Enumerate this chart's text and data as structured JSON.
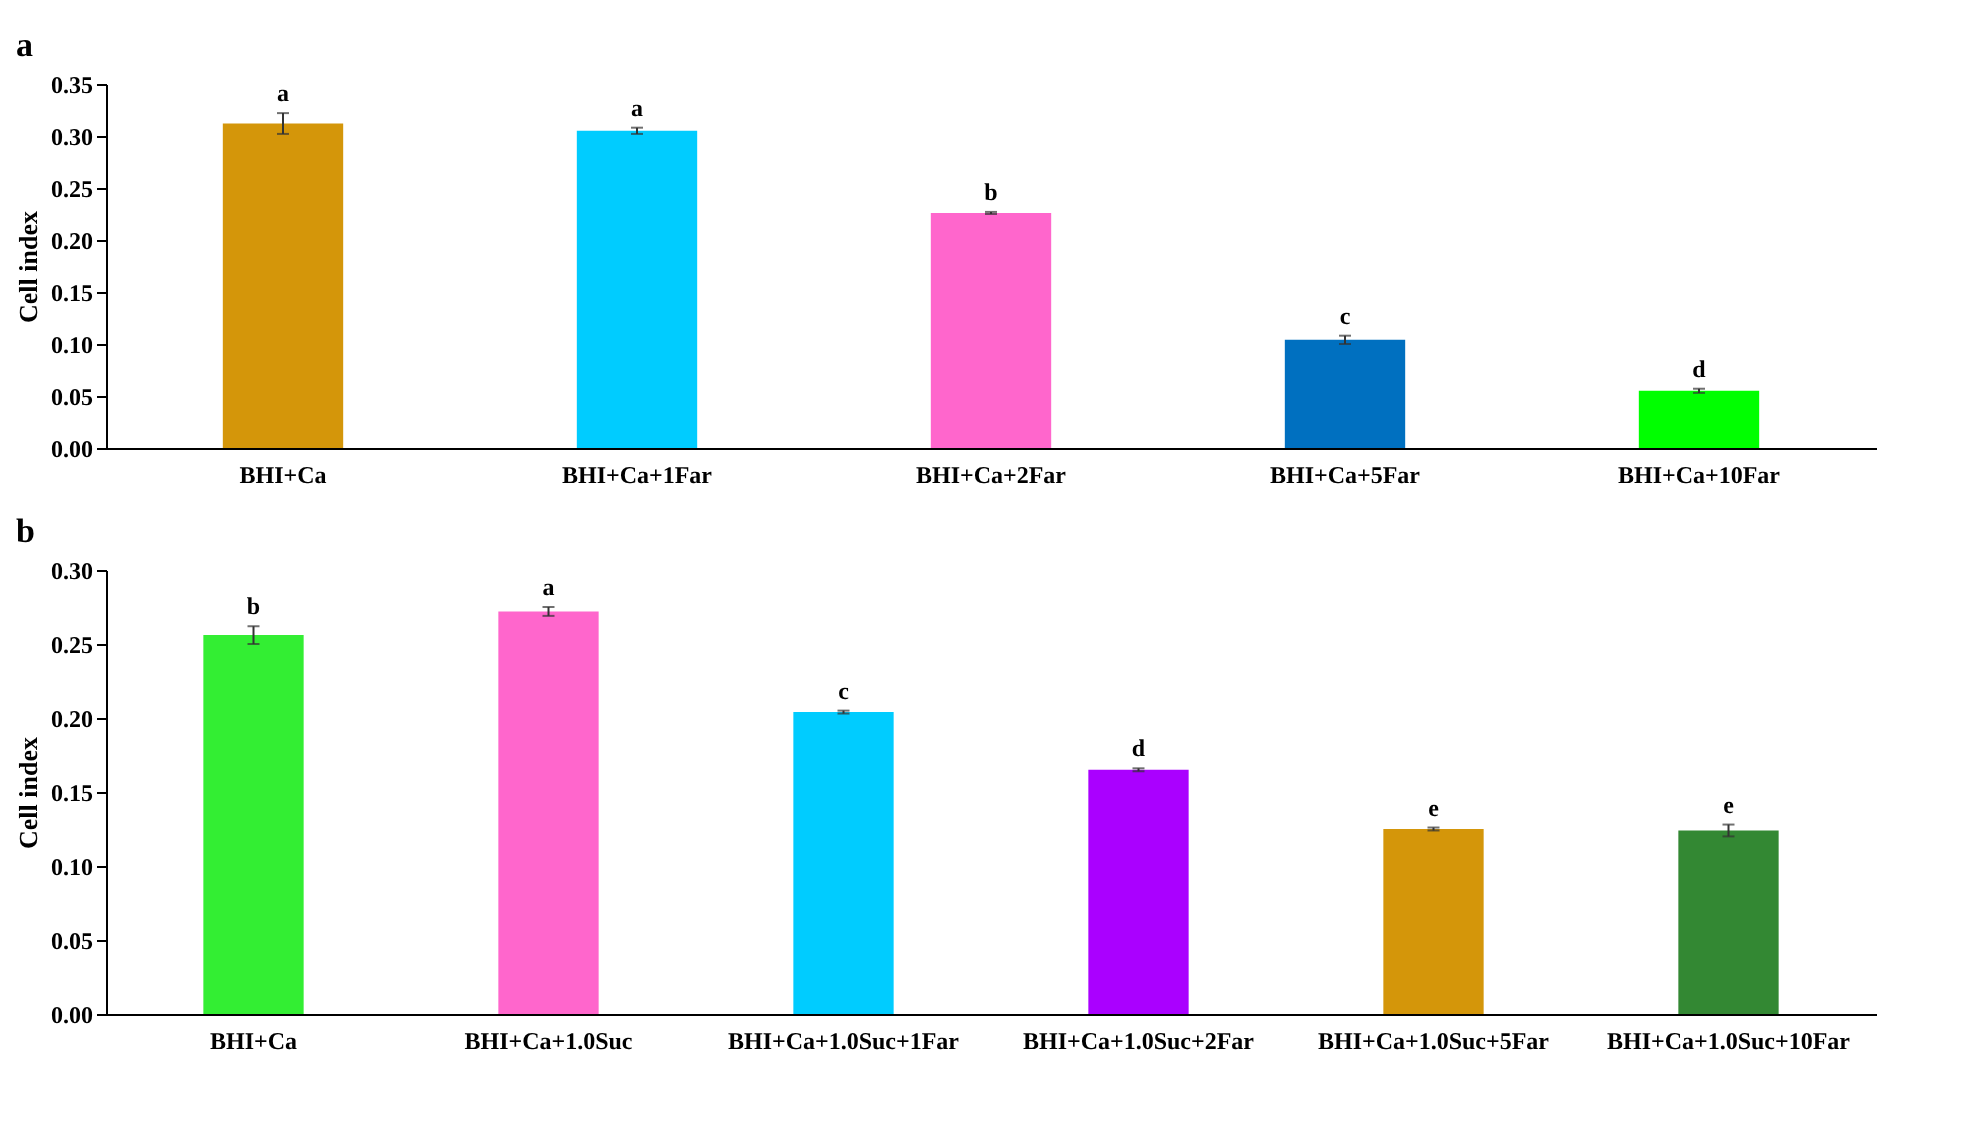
{
  "chart_data": [
    {
      "type": "bar",
      "title": "a",
      "ylabel": "Cell index",
      "categories": [
        "BHI+Ca",
        "BHI+Ca+1Far",
        "BHI+Ca+2Far",
        "BHI+Ca+5Far",
        "BHI+Ca+10Far"
      ],
      "values": [
        0.312,
        0.305,
        0.226,
        0.104,
        0.055
      ],
      "errors": [
        0.01,
        0.003,
        0.001,
        0.004,
        0.002
      ],
      "colors": [
        "#d4960a",
        "#00ccff",
        "#ff66cc",
        "#0070c0",
        "#00ff00"
      ],
      "ylim": [
        0,
        0.35
      ],
      "yticks": [
        {
          "value": 0,
          "label": "0.00"
        },
        {
          "value": 0.05,
          "label": "0.05"
        },
        {
          "value": 0.1,
          "label": "0.10"
        },
        {
          "value": 0.15,
          "label": "0.15"
        },
        {
          "value": 0.2,
          "label": "0.20"
        },
        {
          "value": 0.25,
          "label": "0.25"
        },
        {
          "value": 0.3,
          "label": "0.30"
        },
        {
          "value": 0.35,
          "label": "0.35"
        }
      ],
      "annotations": [
        {
          "text": "a",
          "x": "BHI+Ca",
          "y": 0.322
        },
        {
          "text": "a",
          "x": "BHI+Ca+1Far",
          "y": 0.308
        },
        {
          "text": "b",
          "x": "BHI+Ca+2Far",
          "y": 0.227
        },
        {
          "text": "c",
          "x": "BHI+Ca+5Far",
          "y": 0.108
        },
        {
          "text": "d",
          "x": "BHI+Ca+10Far",
          "y": 0.057
        }
      ]
    },
    {
      "type": "bar",
      "title": "b",
      "ylabel": "Cell index",
      "categories": [
        "BHI+Ca",
        "BHI+Ca+1.0Suc",
        "BHI+Ca+1.0Suc+1Far",
        "BHI+Ca+1.0Suc+2Far",
        "BHI+Ca+1.0Suc+5Far",
        "BHI+Ca+1.0Suc+10Far"
      ],
      "values": [
        0.256,
        0.272,
        0.204,
        0.165,
        0.125,
        0.124
      ],
      "errors": [
        0.006,
        0.003,
        0.001,
        0.001,
        0.001,
        0.004
      ],
      "colors": [
        "#33ee33",
        "#ff66cc",
        "#00ccff",
        "#aa00ff",
        "#d4960a",
        "#338833"
      ],
      "ylim": [
        0,
        0.3
      ],
      "yticks": [
        {
          "value": 0,
          "label": "0.00"
        },
        {
          "value": 0.05,
          "label": "0.05"
        },
        {
          "value": 0.1,
          "label": "0.10"
        },
        {
          "value": 0.15,
          "label": "0.15"
        },
        {
          "value": 0.2,
          "label": "0.20"
        },
        {
          "value": 0.25,
          "label": "0.25"
        },
        {
          "value": 0.3,
          "label": "0.30"
        }
      ],
      "annotations": [
        {
          "text": "b",
          "x": "BHI+Ca",
          "y": 0.262
        },
        {
          "text": "a",
          "x": "BHI+Ca+1.0Suc",
          "y": 0.275
        },
        {
          "text": "c",
          "x": "BHI+Ca+1.0Suc+1Far",
          "y": 0.205
        },
        {
          "text": "d",
          "x": "BHI+Ca+1.0Suc+2Far",
          "y": 0.166
        },
        {
          "text": "e",
          "x": "BHI+Ca+1.0Suc+5Far",
          "y": 0.126
        },
        {
          "text": "e",
          "x": "BHI+Ca+1.0Suc+10Far",
          "y": 0.128
        }
      ]
    }
  ]
}
